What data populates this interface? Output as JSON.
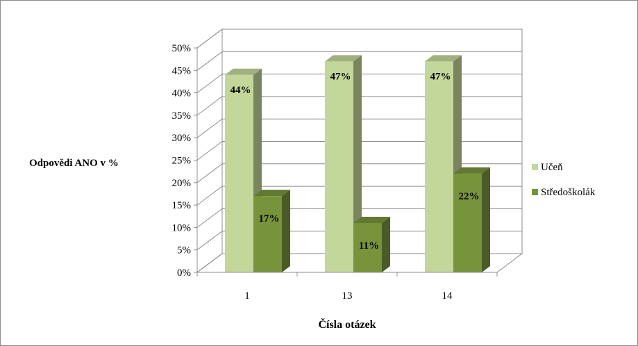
{
  "chart_data": {
    "type": "bar",
    "three_d": true,
    "categories": [
      "1",
      "13",
      "14"
    ],
    "series": [
      {
        "name": "Učeň",
        "values": [
          44,
          47,
          47
        ],
        "color": "#c4d79b"
      },
      {
        "name": "Středoškolák",
        "values": [
          17,
          11,
          22
        ],
        "color": "#77933c"
      }
    ],
    "data_labels": [
      [
        "44%",
        "47%",
        "47%"
      ],
      [
        "17%",
        "11%",
        "22%"
      ]
    ],
    "yticks": [
      "0%",
      "5%",
      "10%",
      "15%",
      "20%",
      "25%",
      "30%",
      "35%",
      "40%",
      "45%",
      "50%"
    ],
    "ylim": [
      0,
      50
    ],
    "ylabel": "Odpovědi ANO v %",
    "xlabel": "Čísla otázek",
    "grid": true,
    "legend_position": "right"
  }
}
